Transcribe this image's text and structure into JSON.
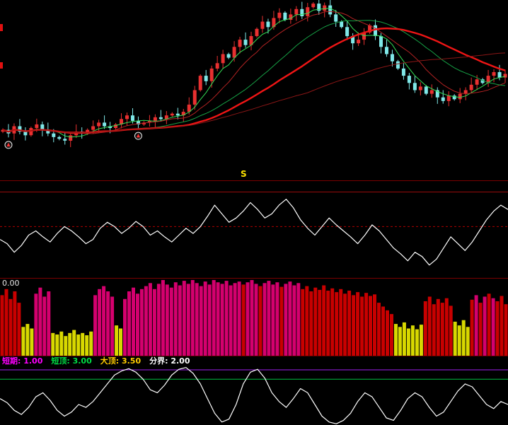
{
  "labels": {
    "zero_value": "0.00",
    "sell_marker": "S"
  },
  "indicator_row": {
    "items": [
      {
        "text": "短期: 1.00",
        "color": "#ff00ff"
      },
      {
        "text": "短顶: 3.00",
        "color": "#00dd44"
      },
      {
        "text": "大顶: 3.50",
        "color": "#ffcc00"
      },
      {
        "text": "分界: 2.00",
        "color": "#ffffff"
      }
    ]
  },
  "colors": {
    "background": "#000000",
    "candle_up": "#e83030",
    "candle_down": "#7fe8e8",
    "bar_magenta": "#d4006e",
    "bar_red": "#c80000",
    "bar_yellow": "#d8d800",
    "oscillator_white": "#ffffff",
    "purple_ref_line": "#a020f0",
    "green_ref_line": "#00c040",
    "dotted_red_ref_line": "#b00000"
  },
  "chart_data": [
    {
      "name": "main-candlestick",
      "type": "candlestick",
      "title": "",
      "ylim": [
        0,
        100
      ],
      "grid": false,
      "closes": [
        28,
        26,
        30,
        27,
        25,
        29,
        31,
        28,
        26,
        24,
        23,
        22,
        25,
        27,
        26,
        28,
        30,
        32,
        30,
        29,
        31,
        34,
        36,
        33,
        31,
        32,
        33,
        35,
        34,
        36,
        37,
        36,
        38,
        42,
        50,
        58,
        55,
        62,
        65,
        70,
        68,
        74,
        78,
        75,
        80,
        84,
        88,
        85,
        90,
        93,
        89,
        92,
        95,
        91,
        96,
        98,
        94,
        97,
        92,
        88,
        85,
        80,
        76,
        78,
        82,
        86,
        80,
        74,
        70,
        66,
        62,
        58,
        54,
        50,
        52,
        48,
        50,
        46,
        44,
        47,
        45,
        48,
        50,
        53,
        56,
        54,
        58,
        60,
        57,
        59
      ],
      "ma_lines": [
        {
          "window": 5,
          "color": "#33dd55",
          "width": 1
        },
        {
          "window": 10,
          "color": "#b22222",
          "width": 1
        },
        {
          "window": 20,
          "color": "#16a045",
          "width": 1
        },
        {
          "window": 30,
          "color": "#ee1515",
          "width": 2.4
        },
        {
          "window": 55,
          "color": "#8a1616",
          "width": 1
        }
      ],
      "markers": [
        {
          "index": 1,
          "label": "buy-signal"
        },
        {
          "index": 24,
          "label": "buy-signal"
        }
      ]
    },
    {
      "name": "oscillator-1",
      "type": "line",
      "title": "",
      "color": "#ffffff",
      "ylim": [
        0,
        100
      ],
      "grid": false,
      "values": [
        45,
        40,
        30,
        38,
        50,
        55,
        48,
        42,
        52,
        60,
        55,
        48,
        40,
        45,
        58,
        65,
        60,
        52,
        58,
        66,
        60,
        50,
        55,
        48,
        42,
        50,
        58,
        52,
        60,
        72,
        85,
        75,
        65,
        70,
        78,
        88,
        80,
        70,
        75,
        85,
        92,
        82,
        68,
        58,
        50,
        60,
        70,
        62,
        55,
        48,
        40,
        50,
        62,
        55,
        45,
        35,
        28,
        20,
        30,
        25,
        15,
        22,
        35,
        48,
        40,
        32,
        42,
        55,
        68,
        78,
        85,
        80
      ],
      "ref_lines": [
        {
          "value": 60,
          "color": "#b00000",
          "dash": true
        }
      ]
    },
    {
      "name": "volume-bars",
      "type": "bar",
      "title": "",
      "ylim": [
        0,
        100
      ],
      "grid": false,
      "value_label": "0.00",
      "heights": [
        80,
        88,
        75,
        85,
        70,
        38,
        42,
        36,
        82,
        90,
        78,
        85,
        30,
        28,
        32,
        26,
        30,
        34,
        28,
        30,
        27,
        32,
        80,
        88,
        92,
        85,
        78,
        40,
        36,
        75,
        85,
        90,
        82,
        88,
        92,
        96,
        88,
        95,
        100,
        94,
        90,
        97,
        93,
        99,
        95,
        100,
        96,
        92,
        98,
        94,
        100,
        97,
        95,
        99,
        93,
        96,
        98,
        94,
        97,
        100,
        95,
        92,
        96,
        99,
        94,
        97,
        91,
        95,
        98,
        93,
        96,
        88,
        92,
        85,
        90,
        87,
        93,
        86,
        89,
        84,
        88,
        82,
        86,
        80,
        84,
        78,
        83,
        79,
        81,
        70,
        65,
        60,
        55,
        42,
        38,
        44,
        36,
        40,
        35,
        41,
        72,
        78,
        68,
        75,
        70,
        76,
        66,
        45,
        40,
        47,
        38,
        74,
        80,
        70,
        78,
        82,
        76,
        72,
        79,
        68
      ],
      "colors": "rrrrryyymmmmyyyyyyyyyymmmmmyymmmmmmmmmmmmmmmmmmmmmmmmmmmmrmmmrmmmmrmmmmrrrrrrrrrrrrrrrrrrrrrryyyyyyyrrrrrrryyyyrmrmrmrrr"
    },
    {
      "name": "oscillator-2",
      "type": "line",
      "title": "短期: 1.00 短顶: 3.00 大顶: 3.50 分界: 2.00",
      "color": "#ffffff",
      "ylim": [
        0,
        100
      ],
      "grid": false,
      "values": [
        45,
        38,
        25,
        18,
        30,
        48,
        55,
        42,
        25,
        15,
        22,
        35,
        30,
        40,
        55,
        70,
        85,
        92,
        96,
        90,
        78,
        60,
        55,
        68,
        85,
        95,
        98,
        88,
        70,
        45,
        20,
        5,
        10,
        35,
        70,
        90,
        95,
        80,
        55,
        40,
        30,
        45,
        62,
        55,
        35,
        15,
        5,
        2,
        8,
        20,
        40,
        55,
        48,
        30,
        12,
        8,
        25,
        45,
        55,
        48,
        30,
        15,
        22,
        40,
        58,
        70,
        65,
        50,
        35,
        28,
        40,
        35
      ],
      "ref_lines": [
        {
          "value": 94,
          "color": "#a020f0"
        },
        {
          "value": 78,
          "color": "#00c040"
        }
      ]
    }
  ]
}
